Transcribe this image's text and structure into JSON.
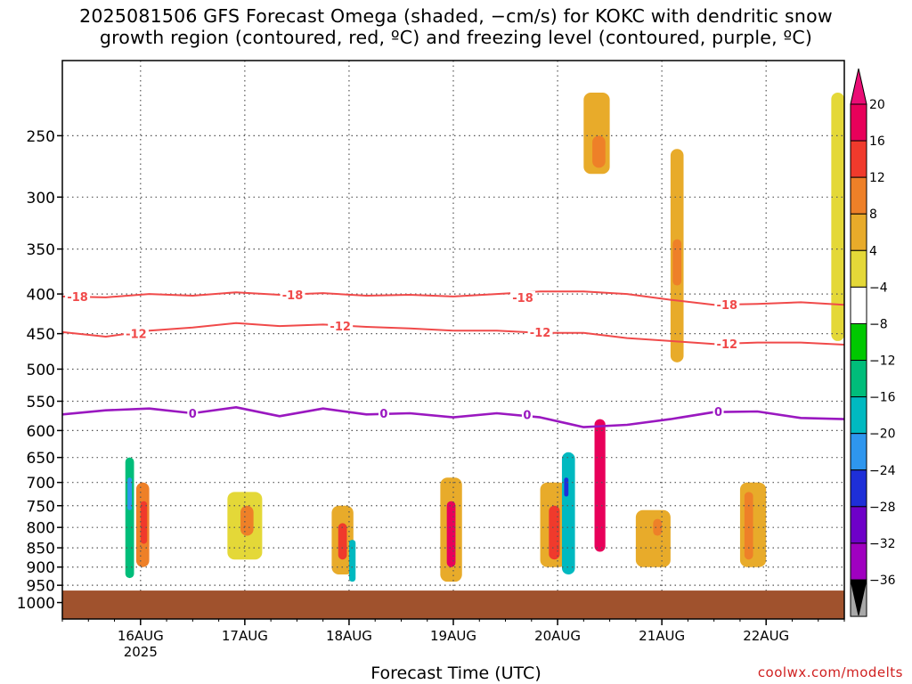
{
  "title": {
    "line1": "2025081506 GFS Forecast Omega (shaded, −cm/s) for KOKC with dendritic snow",
    "line2": "growth region (contoured, red, ºC) and freezing level (contoured, purple, ºC)"
  },
  "credit": "coolwx.com/modelts",
  "chart_data": {
    "type": "heatmap",
    "xlabel": "Forecast Time (UTC)",
    "ylabel": "",
    "x_range_hours": [
      0,
      180
    ],
    "x_ticks": [
      {
        "label": "16AUG",
        "sub": "2025",
        "hour": 18
      },
      {
        "label": "17AUG",
        "sub": "",
        "hour": 42
      },
      {
        "label": "18AUG",
        "sub": "",
        "hour": 66
      },
      {
        "label": "19AUG",
        "sub": "",
        "hour": 90
      },
      {
        "label": "20AUG",
        "sub": "",
        "hour": 114
      },
      {
        "label": "21AUG",
        "sub": "",
        "hour": 138
      },
      {
        "label": "22AUG",
        "sub": "",
        "hour": 162
      }
    ],
    "y_range_hpa": [
      1050,
      200
    ],
    "y_scale": "log",
    "y_ticks": [
      250,
      300,
      350,
      400,
      450,
      500,
      550,
      600,
      650,
      700,
      750,
      800,
      850,
      900,
      950,
      1000
    ],
    "grid": true,
    "ground_level_hpa": 965,
    "colorbar": {
      "labels": [
        "20",
        "16",
        "12",
        "8",
        "4",
        "−4",
        "−8",
        "−12",
        "−16",
        "−20",
        "−24",
        "−28",
        "−32",
        "−36"
      ],
      "levels": [
        20,
        16,
        12,
        8,
        4,
        -4,
        -8,
        -12,
        -16,
        -20,
        -24,
        -28,
        -32,
        -36
      ],
      "colors": [
        "#e8005a",
        "#f03a2c",
        "#ee8028",
        "#e8ab2a",
        "#e4d838",
        "#ffffff",
        "#00c800",
        "#00bd7a",
        "#00b9c0",
        "#2e96ee",
        "#1e2fd8",
        "#6e00c8",
        "#a000c0",
        "#a8a8a8",
        "#000000"
      ],
      "top_arrow_color": "#ea0d75",
      "bottom_arrow_color": "#000000"
    },
    "contours": [
      {
        "label": "-18",
        "color": "#f04a4a",
        "x": [
          0,
          10,
          20,
          30,
          40,
          50,
          60,
          70,
          80,
          90,
          100,
          110,
          120,
          130,
          140,
          150,
          160,
          170,
          180
        ],
        "y": [
          403,
          404,
          400,
          402,
          398,
          401,
          399,
          402,
          401,
          403,
          400,
          397,
          397,
          400,
          407,
          413,
          412,
          410,
          413
        ]
      },
      {
        "label": "-12",
        "color": "#f04a4a",
        "x": [
          0,
          10,
          20,
          30,
          40,
          50,
          60,
          70,
          80,
          90,
          100,
          110,
          120,
          130,
          140,
          150,
          160,
          170,
          180
        ],
        "y": [
          448,
          454,
          446,
          442,
          436,
          440,
          438,
          441,
          443,
          446,
          446,
          449,
          449,
          456,
          460,
          464,
          462,
          462,
          465
        ]
      },
      {
        "label": "0",
        "color": "#9a18c0",
        "x": [
          0,
          10,
          20,
          30,
          40,
          50,
          60,
          70,
          80,
          90,
          100,
          110,
          120,
          130,
          140,
          150,
          160,
          170,
          180
        ],
        "y": [
          572,
          565,
          562,
          570,
          560,
          575,
          562,
          572,
          570,
          577,
          570,
          577,
          594,
          590,
          580,
          568,
          567,
          578,
          580
        ]
      }
    ],
    "contour_labels": [
      {
        "text": "-18",
        "x": 3.5,
        "y": 403
      },
      {
        "text": "-18",
        "x": 53,
        "y": 401
      },
      {
        "text": "-18",
        "x": 106,
        "y": 404
      },
      {
        "text": "-18",
        "x": 153,
        "y": 413
      },
      {
        "text": "-12",
        "x": 17,
        "y": 450
      },
      {
        "text": "-12",
        "x": 64,
        "y": 440
      },
      {
        "text": "-12",
        "x": 110,
        "y": 448
      },
      {
        "text": "-12",
        "x": 153,
        "y": 464
      },
      {
        "text": "0",
        "x": 30,
        "y": 570
      },
      {
        "text": "0",
        "x": 74,
        "y": 570
      },
      {
        "text": "0",
        "x": 107,
        "y": 572
      },
      {
        "text": "0",
        "x": 151,
        "y": 567
      }
    ],
    "omega_cells": [
      {
        "x": [
          17,
          20
        ],
        "y": [
          700,
          900
        ],
        "value": 12
      },
      {
        "x": [
          18,
          19.5
        ],
        "y": [
          740,
          840
        ],
        "value": 16
      },
      {
        "x": [
          14.5,
          16.5
        ],
        "y": [
          650,
          930
        ],
        "value": -8
      },
      {
        "x": [
          15,
          16
        ],
        "y": [
          690,
          760
        ],
        "value": -16
      },
      {
        "x": [
          38,
          46
        ],
        "y": [
          720,
          880
        ],
        "value": 6
      },
      {
        "x": [
          41,
          44
        ],
        "y": [
          750,
          820
        ],
        "value": 12
      },
      {
        "x": [
          62,
          67
        ],
        "y": [
          750,
          920
        ],
        "value": 10
      },
      {
        "x": [
          63.5,
          65.5
        ],
        "y": [
          790,
          880
        ],
        "value": 18
      },
      {
        "x": [
          66,
          67.5
        ],
        "y": [
          830,
          940
        ],
        "value": -12
      },
      {
        "x": [
          87,
          92
        ],
        "y": [
          690,
          940
        ],
        "value": 10
      },
      {
        "x": [
          88.5,
          90.5
        ],
        "y": [
          740,
          900
        ],
        "value": 20
      },
      {
        "x": [
          110,
          116
        ],
        "y": [
          700,
          900
        ],
        "value": 10
      },
      {
        "x": [
          112,
          114.5
        ],
        "y": [
          750,
          880
        ],
        "value": 18
      },
      {
        "x": [
          115,
          118
        ],
        "y": [
          640,
          920
        ],
        "value": -12
      },
      {
        "x": [
          115.5,
          116.5
        ],
        "y": [
          690,
          730
        ],
        "value": -20
      },
      {
        "x": [
          122.5,
          125
        ],
        "y": [
          580,
          860
        ],
        "value": 20
      },
      {
        "x": [
          132,
          140
        ],
        "y": [
          760,
          900
        ],
        "value": 8
      },
      {
        "x": [
          136,
          138
        ],
        "y": [
          780,
          820
        ],
        "value": 14
      },
      {
        "x": [
          156,
          162
        ],
        "y": [
          700,
          900
        ],
        "value": 8
      },
      {
        "x": [
          157,
          159
        ],
        "y": [
          720,
          880
        ],
        "value": 14
      },
      {
        "x": [
          120,
          126
        ],
        "y": [
          220,
          280
        ],
        "value": 10
      },
      {
        "x": [
          122,
          125
        ],
        "y": [
          250,
          275
        ],
        "value": 14
      },
      {
        "x": [
          140,
          143
        ],
        "y": [
          260,
          490
        ],
        "value": 8
      },
      {
        "x": [
          140.5,
          142.5
        ],
        "y": [
          340,
          390
        ],
        "value": 14
      },
      {
        "x": [
          177,
          180
        ],
        "y": [
          220,
          460
        ],
        "value": 5
      }
    ]
  }
}
